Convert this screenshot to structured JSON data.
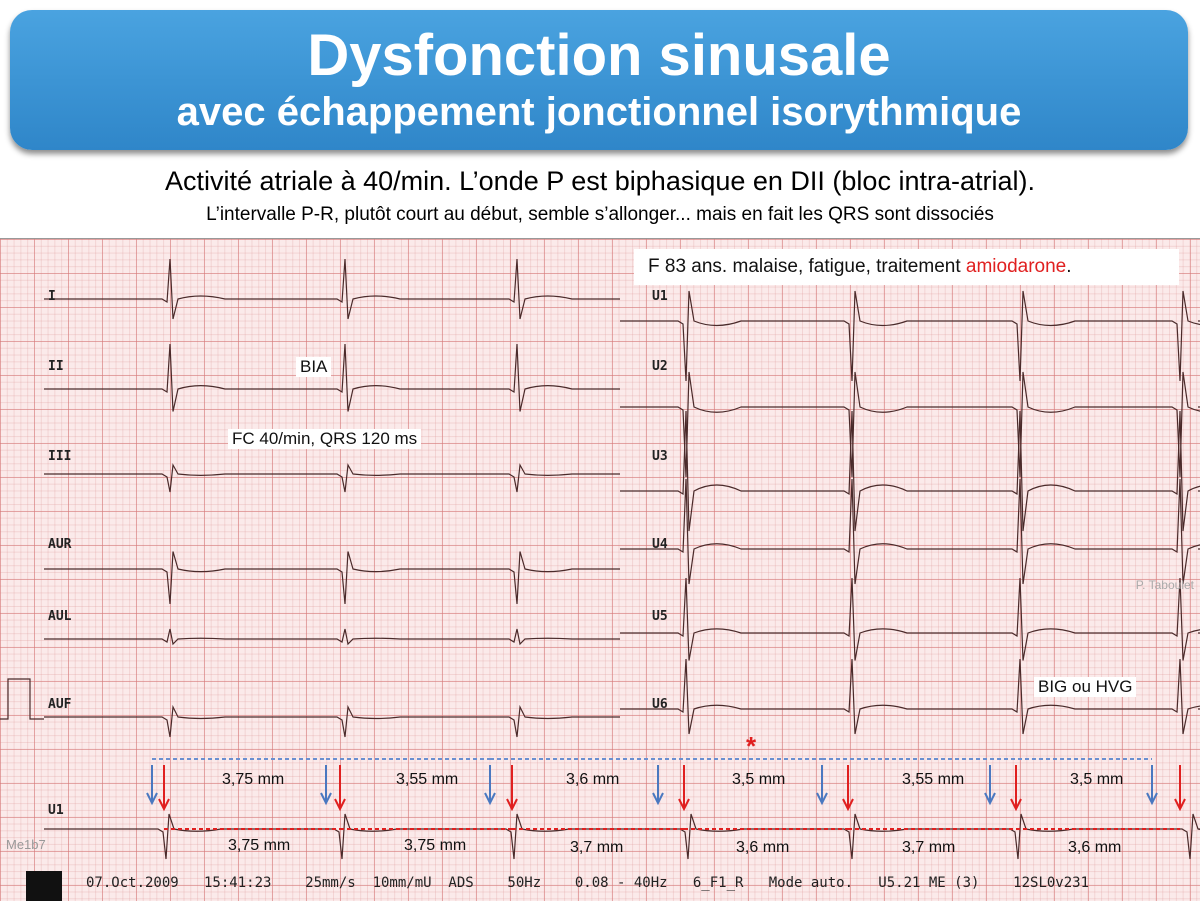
{
  "title": "Dysfonction sinusale",
  "subtitle": "avec échappement jonctionnel isorythmique",
  "description_line1": "Activité atriale à 40/min. L’onde P est biphasique en DII (bloc intra-atrial).",
  "description_line2": "L’intervalle P-R, plutôt court au début, semble s’allonger... mais en fait les QRS sont dissociés",
  "info_prefix": "F 83 ans. malaise, fatigue, traitement ",
  "info_highlight": "amiodarone",
  "info_suffix": ".",
  "annotations": {
    "bia": "BIA",
    "fc": "FC 40/min, QRS 120 ms",
    "big": "BIG ou HVG",
    "star": "*"
  },
  "leads_left": [
    "I",
    "II",
    "III",
    "AUR",
    "AUL",
    "AUF"
  ],
  "leads_right": [
    "U1",
    "U2",
    "U3",
    "U4",
    "U5",
    "U6"
  ],
  "rhythm_lead": "U1",
  "blue_measurements": [
    "3,75 mm",
    "3,55 mm",
    "3,6 mm",
    "3,5 mm",
    "3,55 mm",
    "3,5 mm"
  ],
  "red_measurements": [
    "3,75 mm",
    "3,75 mm",
    "3,7 mm",
    "3,6 mm",
    "3,7 mm",
    "3,6 mm"
  ],
  "credit": "P. Taboulet",
  "code": "Me1b7",
  "footer": "07.Oct.2009   15:41:23    25mm/s  10mm/mU  ADS    50Hz    0.08 - 40Hz   6_F1_R   Mode auto.   U5.21 ME (3)    12SL0v231",
  "colors": {
    "banner": "#3a93d4",
    "blue_arrow": "#4a78c0",
    "red_arrow": "#e02020"
  }
}
